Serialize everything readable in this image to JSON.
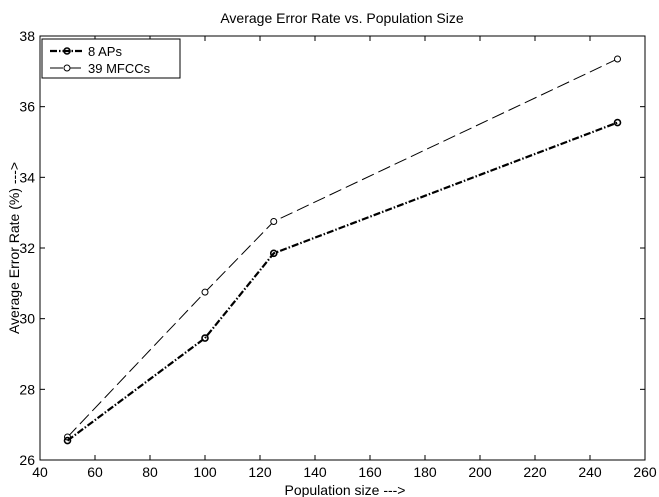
{
  "chart_data": {
    "type": "line",
    "title": "Average Error Rate vs. Population Size",
    "xlabel": "Population size --->",
    "ylabel": "Average Error Rate (%) --->",
    "xlim": [
      40,
      260
    ],
    "ylim": [
      26,
      38
    ],
    "xticks": [
      40,
      60,
      80,
      100,
      120,
      140,
      160,
      180,
      200,
      220,
      240,
      260
    ],
    "yticks": [
      26,
      28,
      30,
      32,
      34,
      36,
      38
    ],
    "grid": false,
    "legend_position": "top-left",
    "x": [
      50,
      100,
      125,
      250
    ],
    "series": [
      {
        "name": "8 APs",
        "values": [
          26.55,
          29.45,
          31.85,
          35.55
        ],
        "line_style": "dash-dot",
        "marker": "circle",
        "color": "#000000"
      },
      {
        "name": "39 MFCCs",
        "values": [
          26.65,
          30.75,
          32.75,
          37.35
        ],
        "line_style": "dashed",
        "marker": "circle",
        "color": "#000000"
      }
    ]
  }
}
